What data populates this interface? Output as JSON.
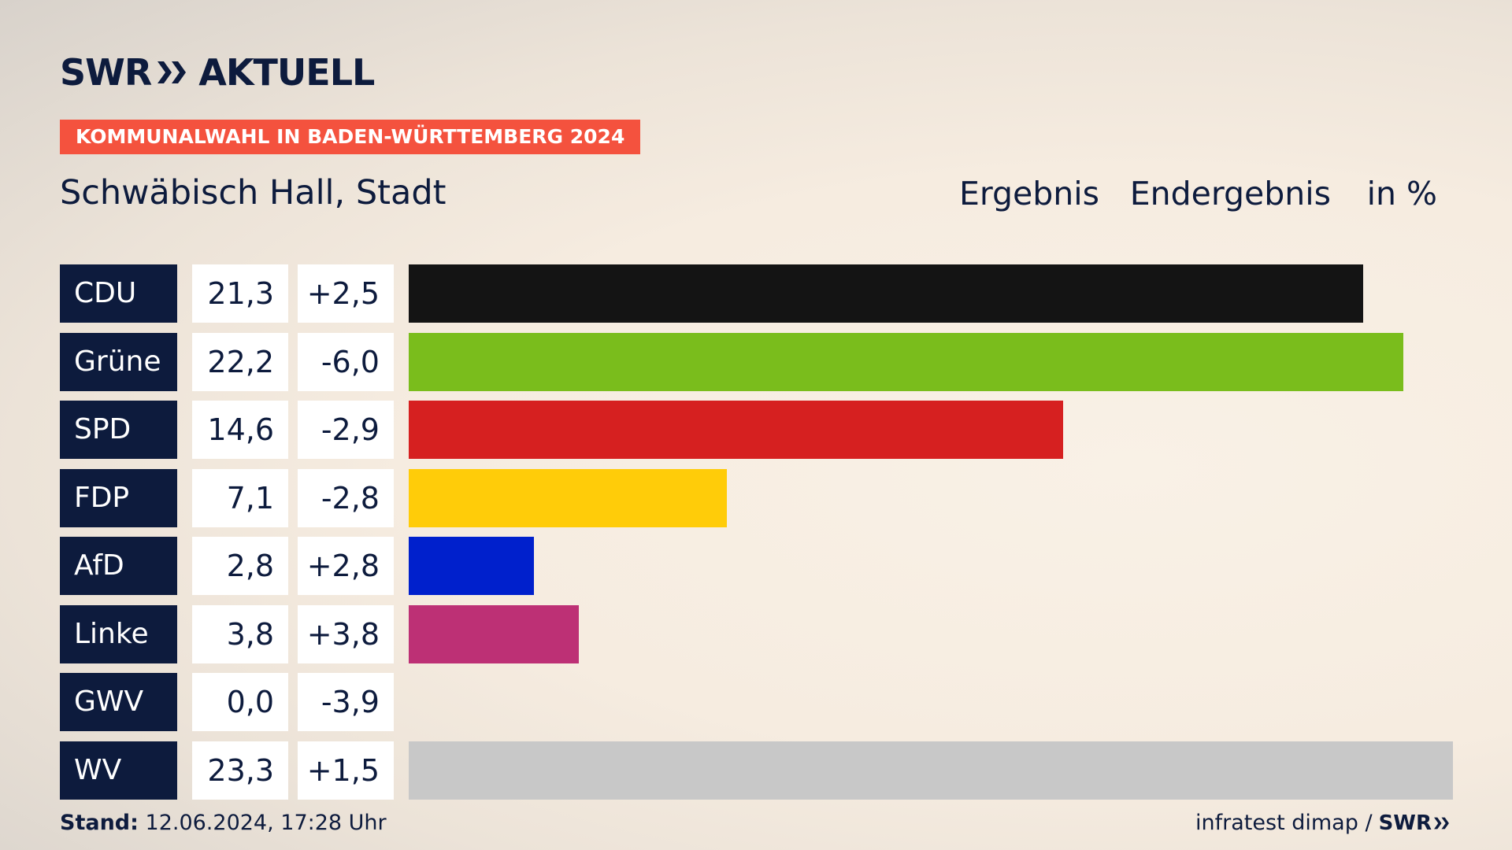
{
  "brand": {
    "logo_left": "SWR",
    "logo_right": "AKTUELL",
    "logo_icon": "double-chevron-icon"
  },
  "banner": "KOMMUNALWAHL IN BADEN-WÜRTTEMBERG 2024",
  "location": "Schwäbisch Hall, Stadt",
  "headers": {
    "result": "Ergebnis",
    "final": "Endergebnis",
    "unit": "in %"
  },
  "chart_data": {
    "type": "bar",
    "orientation": "horizontal",
    "categories": [
      "CDU",
      "Grüne",
      "SPD",
      "FDP",
      "AfD",
      "Linke",
      "GWV",
      "WV"
    ],
    "values": [
      21.3,
      22.2,
      14.6,
      7.1,
      2.8,
      3.8,
      0.0,
      23.3
    ],
    "value_labels": [
      "21,3",
      "22,2",
      "14,6",
      "7,1",
      "2,8",
      "3,8",
      "0,0",
      "23,3"
    ],
    "changes": [
      2.5,
      -6.0,
      -2.9,
      -2.8,
      2.8,
      3.8,
      -3.9,
      1.5
    ],
    "change_labels": [
      "+2,5",
      "-6,0",
      "-2,9",
      "-2,8",
      "+2,8",
      "+3,8",
      "-3,9",
      "+1,5"
    ],
    "colors": [
      "#141414",
      "#7abd1c",
      "#d62020",
      "#ffcc09",
      "#0020cc",
      "#bd3075",
      "#c8c8c8",
      "#c8c8c8"
    ],
    "xlim": [
      0,
      23.3
    ]
  },
  "footer": {
    "stand_label": "Stand:",
    "stand_value": "12.06.2024, 17:28 Uhr",
    "source": "infratest dimap /",
    "source_brand": "SWR"
  }
}
